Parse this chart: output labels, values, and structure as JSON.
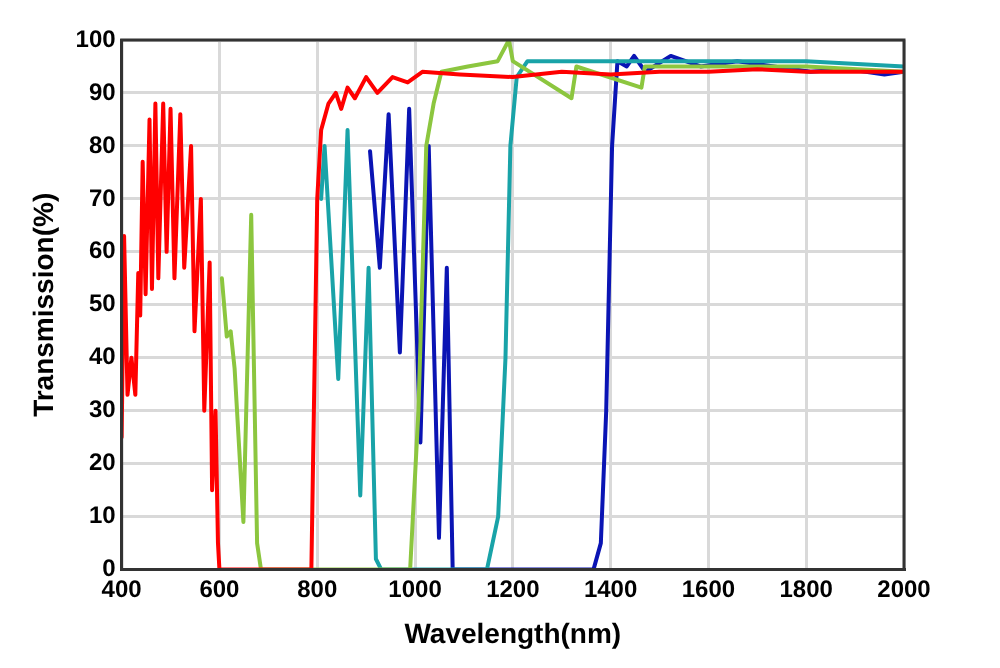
{
  "chart_data": {
    "type": "line",
    "xlabel": "Wavelength(nm)",
    "ylabel": "Transmission(%)",
    "xlim": [
      400,
      2000
    ],
    "xticks": [
      400,
      600,
      800,
      1000,
      1200,
      1400,
      1600,
      1800,
      2000
    ],
    "ylim": [
      0,
      100
    ],
    "yticks": [
      0,
      10,
      20,
      30,
      40,
      50,
      60,
      70,
      80,
      90,
      100
    ],
    "grid": true,
    "legend": false,
    "marker": "none",
    "line_style": "solid",
    "series": [
      {
        "color": "#ff0000",
        "x": [
          400,
          405,
          412,
          420,
          428,
          434,
          438,
          443,
          449,
          457,
          462,
          469,
          475,
          485,
          492,
          500,
          508,
          520,
          528,
          542,
          549,
          562,
          569,
          580,
          585,
          592,
          597,
          600,
          788,
          800,
          808,
          823,
          838,
          849,
          862,
          877,
          900,
          923,
          954,
          985,
          1015,
          1092,
          1200,
          1300,
          1400,
          1500,
          1600,
          1700,
          1800,
          1900,
          2000
        ],
        "values": [
          25,
          63,
          33,
          40,
          33,
          56,
          48,
          77,
          52,
          85,
          53,
          88,
          55,
          88,
          60,
          87,
          55,
          86,
          57,
          80,
          45,
          70,
          30,
          58,
          15,
          30,
          5,
          0,
          0,
          70,
          83,
          88,
          90,
          87,
          91,
          89,
          93,
          90,
          93,
          92,
          94,
          93.5,
          93,
          94,
          93.5,
          94,
          94,
          94.5,
          94,
          94,
          94
        ]
      },
      {
        "color": "#8cc63f",
        "x": [
          605,
          615,
          623,
          631,
          649,
          665,
          677,
          685,
          990,
          1007,
          1023,
          1038,
          1054,
          1108,
          1169,
          1192,
          1200,
          1320,
          1330,
          1463,
          1470,
          1600,
          1800,
          2000
        ],
        "values": [
          55,
          44,
          45,
          38,
          9,
          67,
          5,
          0,
          0,
          30,
          80,
          88,
          94,
          95,
          96,
          100,
          96,
          89,
          95,
          91,
          95,
          95,
          95,
          94
        ]
      },
      {
        "color": "#19a3a8",
        "x": [
          808,
          815,
          843,
          862,
          888,
          905,
          920,
          931,
          1147,
          1170,
          1185,
          1195,
          1208,
          1230,
          1400,
          1600,
          1800,
          2000
        ],
        "values": [
          70,
          80,
          36,
          83,
          14,
          57,
          2,
          0,
          0,
          10,
          40,
          80,
          93,
          96,
          96,
          96,
          96,
          95
        ]
      },
      {
        "color": "#0a14b4",
        "x": [
          908,
          928,
          946,
          969,
          988,
          1011,
          1028,
          1049,
          1065,
          1077,
          1365,
          1380,
          1391,
          1403,
          1414,
          1433,
          1448,
          1471,
          1523,
          1584,
          1659,
          1734,
          1809,
          1884,
          1960,
          2000
        ],
        "values": [
          79,
          57,
          86,
          41,
          87,
          24,
          80,
          6,
          57,
          0,
          0,
          5,
          30,
          80,
          96,
          95,
          97,
          94,
          97,
          95,
          96,
          95,
          94,
          94.5,
          93.5,
          94
        ]
      }
    ]
  }
}
